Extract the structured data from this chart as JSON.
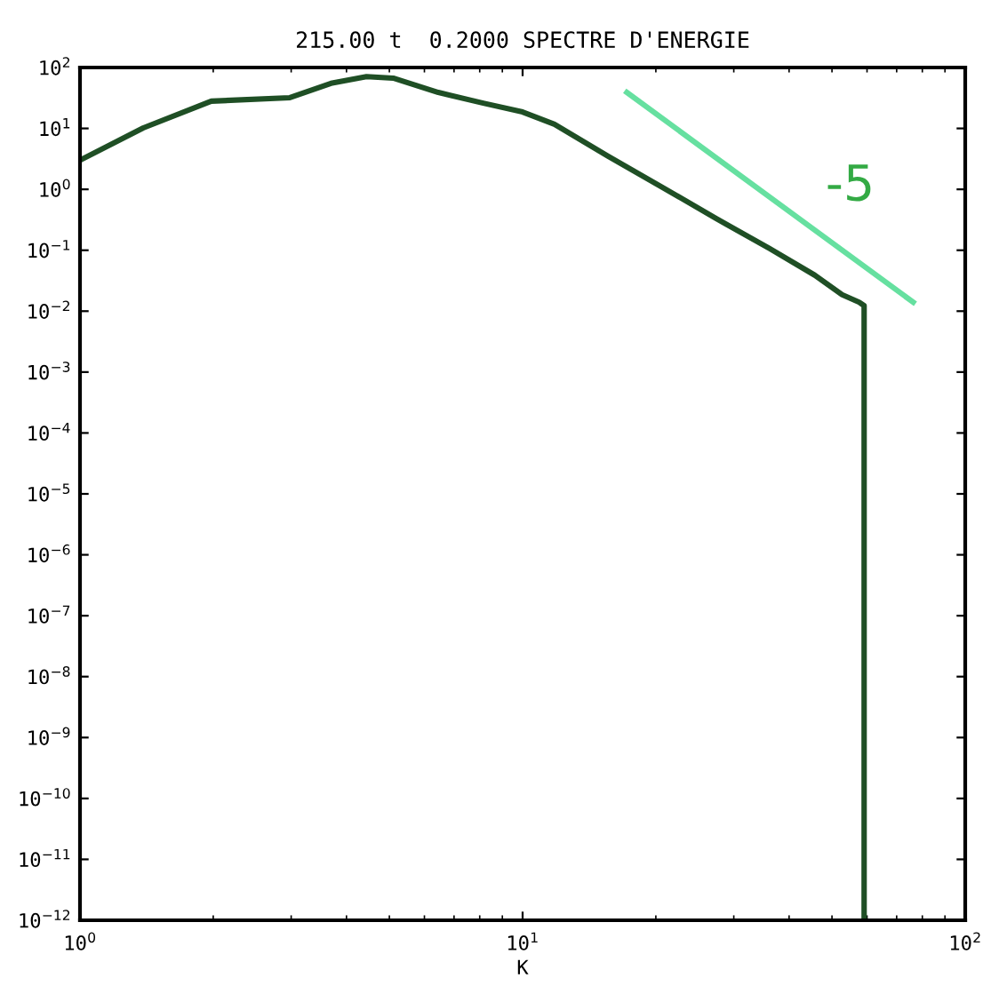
{
  "chart_data": {
    "type": "line",
    "title": "215.00 t  0.2000 SPECTRE D'ENERGIE",
    "xlabel": "K",
    "log": "xy",
    "grid": false,
    "legend": false,
    "series": [
      {
        "color": "#1f4f25",
        "x": [
          1,
          1.39,
          1.98,
          2.98,
          3.69,
          4.44,
          5.1,
          6.45,
          8.15,
          10,
          11.8,
          15.6,
          20.6,
          27.4,
          36.1,
          45.7,
          52.7,
          57.6,
          59.1,
          59.1
        ],
        "values": [
          3.0,
          10.2,
          28,
          32,
          55,
          71,
          67,
          39,
          26,
          18.6,
          11.7,
          3.5,
          1.1,
          0.33,
          0.107,
          0.039,
          0.0186,
          0.014,
          0.0123,
          1e-12
        ]
      },
      {
        "color": "#66e0a0",
        "x": [
          17.2,
          76.3
        ],
        "values": [
          39,
          0.014
        ]
      }
    ],
    "annotations": [
      "-5"
    ],
    "xlim": [
      1,
      100
    ],
    "ylim": [
      1e-12,
      100
    ],
    "xticks": [
      {
        "value": 1,
        "label": "10$^{0}$"
      },
      {
        "value": 10,
        "label": "10$^{1}$"
      },
      {
        "value": 100,
        "label": "10$^{2}$"
      }
    ],
    "yticks": [
      {
        "value": 1e-12,
        "label": "10$^{−12}$"
      },
      {
        "value": 1e-11,
        "label": "10$^{−11}$"
      },
      {
        "value": 1e-10,
        "label": "10$^{−10}$"
      },
      {
        "value": 1e-09,
        "label": "10$^{−9}$"
      },
      {
        "value": 1e-08,
        "label": "10$^{−8}$"
      },
      {
        "value": 1e-07,
        "label": "10$^{−7}$"
      },
      {
        "value": 1e-06,
        "label": "10$^{−6}$"
      },
      {
        "value": 1e-05,
        "label": "10$^{−5}$"
      },
      {
        "value": 0.0001,
        "label": "10$^{−4}$"
      },
      {
        "value": 0.001,
        "label": "10$^{−3}$"
      },
      {
        "value": 0.01,
        "label": "10$^{−2}$"
      },
      {
        "value": 0.1,
        "label": "10$^{−1}$"
      },
      {
        "value": 1,
        "label": "10$^{0}$"
      },
      {
        "value": 10,
        "label": "10$^{1}$"
      },
      {
        "value": 100,
        "label": "10$^{2}$"
      }
    ]
  }
}
